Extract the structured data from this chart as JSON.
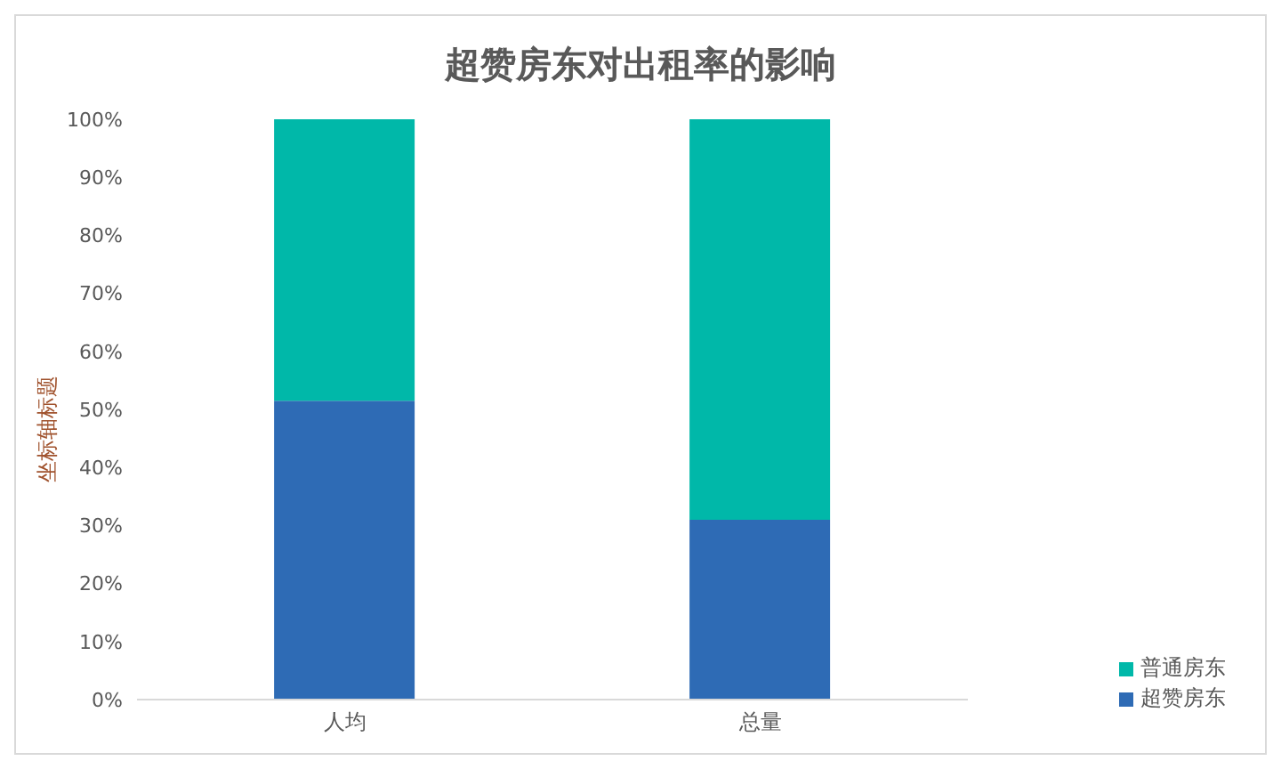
{
  "chart_data": {
    "type": "bar",
    "title": "超赞房东对出租率的影响",
    "ylabel": "坐标轴标题",
    "categories": [
      "人均",
      "总量"
    ],
    "stacked": true,
    "series": [
      {
        "name": "超赞房东",
        "color": "#2e6bb5",
        "values": [
          51.5,
          31
        ]
      },
      {
        "name": "普通房东",
        "color": "#00b8a9",
        "values": [
          48.5,
          69
        ]
      }
    ],
    "ylim": [
      0,
      100
    ],
    "yticks": [
      {
        "value": 0,
        "label": "0%"
      },
      {
        "value": 10,
        "label": "10%"
      },
      {
        "value": 20,
        "label": "20%"
      },
      {
        "value": 30,
        "label": "30%"
      },
      {
        "value": 40,
        "label": "40%"
      },
      {
        "value": 50,
        "label": "50%"
      },
      {
        "value": 60,
        "label": "60%"
      },
      {
        "value": 70,
        "label": "70%"
      },
      {
        "value": 80,
        "label": "80%"
      },
      {
        "value": 90,
        "label": "90%"
      },
      {
        "value": 100,
        "label": "100%"
      }
    ],
    "grid": false,
    "legend": "bottom right"
  }
}
